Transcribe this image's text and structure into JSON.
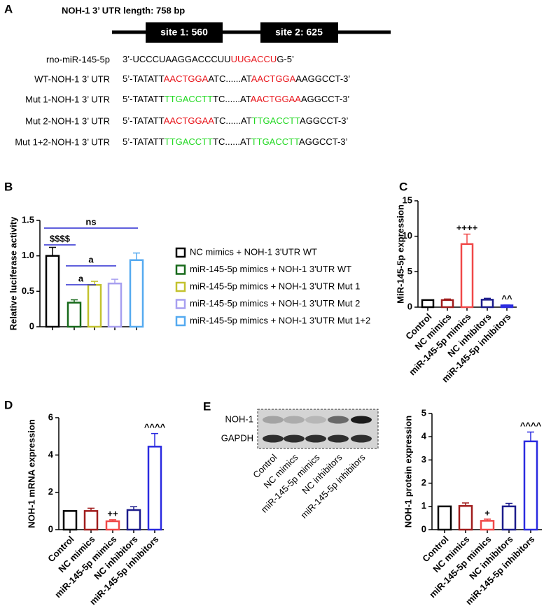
{
  "panel_a": {
    "label": "A",
    "title": "NOH-1  3’ UTR length: 758 bp",
    "sites": [
      "site 1: 560",
      "site 2: 625"
    ],
    "sequences": [
      {
        "label": "rno-miR-145-5p",
        "segments": [
          {
            "text": "3’-UCCCUAAGGACCCUU"
          },
          {
            "text": "UUGACCU",
            "color": "#e8151b"
          },
          {
            "text": "G-5’"
          }
        ]
      },
      {
        "label": "WT-NOH-1 3’ UTR",
        "segments": [
          {
            "text": "5’-TATATT"
          },
          {
            "text": "AACTGGA",
            "color": "#e8151b"
          },
          {
            "text": "ATC......AT"
          },
          {
            "text": "AACTGGA",
            "color": "#e8151b"
          },
          {
            "text": "AAGGCCT-3’"
          }
        ]
      },
      {
        "label": "Mut 1-NOH-1 3’ UTR",
        "segments": [
          {
            "text": "5’-TATATT"
          },
          {
            "text": "TTGACCTT",
            "color": "#22d822"
          },
          {
            "text": "TC......AT"
          },
          {
            "text": "AACTGGAA",
            "color": "#e8151b"
          },
          {
            "text": "AGGCCT-3’"
          }
        ]
      },
      {
        "label": "Mut 2-NOH-1 3’ UTR",
        "segments": [
          {
            "text": "5’-TATATT"
          },
          {
            "text": "AACTGGAA",
            "color": "#e8151b"
          },
          {
            "text": "TC......AT"
          },
          {
            "text": "TTGACCTT",
            "color": "#22d822"
          },
          {
            "text": "AGGCCT-3’"
          }
        ]
      },
      {
        "label": "Mut 1+2-NOH-1 3’ UTR",
        "segments": [
          {
            "text": "5’-TATATT"
          },
          {
            "text": "TTGACCTT",
            "color": "#22d822"
          },
          {
            "text": "TC......AT"
          },
          {
            "text": "TTGACCTT",
            "color": "#22d822"
          },
          {
            "text": "AGGCCT-3’"
          }
        ]
      }
    ]
  },
  "blot": {
    "label": "E",
    "bands": [
      "NOH-1",
      "GAPDH"
    ],
    "lanes": [
      "Control",
      "NC mimics",
      "miR-145-5p mimics",
      "NC inhibitors",
      "miR-145-5p inhibitors"
    ]
  },
  "chart_data": [
    {
      "type": "bar",
      "label": "B",
      "y_label": "Relative luciferase activity",
      "legend": true,
      "categories": [
        "NC mimics + NOH-1 3'UTR WT",
        "miR-145-5p mimics + NOH-1 3'UTR WT",
        "miR-145-5p mimics + NOH-1 3'UTR Mut 1",
        "miR-145-5p mimics + NOH-1 3'UTR Mut 2",
        "miR-145-5p mimics + NOH-1 3'UTR Mut 1+2"
      ],
      "values": [
        1.0,
        0.34,
        0.59,
        0.61,
        0.94
      ],
      "errors": [
        0.12,
        0.04,
        0.05,
        0.06,
        0.1
      ],
      "colors": [
        "#000000",
        "#17691a",
        "#c3c22e",
        "#a79ff0",
        "#55aaf0"
      ],
      "ylim": [
        0,
        1.5
      ],
      "yticks": [
        0,
        0.5,
        {
          "value": 1,
          "label": "1.0"
        },
        1.5
      ],
      "brackets": [
        {
          "text": "ns",
          "from": 0,
          "to": 4,
          "color": "#2a2ad0"
        },
        {
          "text": "$$$$",
          "from": 0,
          "to": 1,
          "color": "#2a2ad0"
        },
        {
          "text": "a",
          "from": 1,
          "to": 3,
          "color": "#2a2ad0"
        },
        {
          "text": "a",
          "from": 1,
          "to": 2,
          "color": "#2a2ad0"
        }
      ]
    },
    {
      "type": "bar",
      "label": "C",
      "y_label": "MiR-145-5p expression",
      "categories": [
        "Control",
        "NC mimics",
        "miR-145-5p mimics",
        "NC inhibitors",
        "miR-145-5p inhibitors"
      ],
      "values": [
        1.0,
        1.0,
        8.9,
        1.05,
        0.25
      ],
      "errors": [
        0,
        0.15,
        1.4,
        0.2,
        0.05
      ],
      "colors": [
        "#000000",
        "#a01c1c",
        "#f04848",
        "#1c1c8c",
        "#2a2ae0"
      ],
      "annotations": [
        null,
        null,
        "++++",
        null,
        "^^"
      ],
      "ylim": [
        0,
        15
      ],
      "yticks": [
        0,
        5,
        10,
        15
      ]
    },
    {
      "type": "bar",
      "y_label": "NOH-1 mRNA expression",
      "label": "D",
      "categories": [
        "Control",
        "NC mimics",
        "miR-145-5p mimics",
        "NC inhibitors",
        "miR-145-5p inhibitors"
      ],
      "values": [
        1.0,
        1.0,
        0.45,
        1.05,
        4.45
      ],
      "errors": [
        0,
        0.15,
        0.08,
        0.18,
        0.7
      ],
      "colors": [
        "#000000",
        "#a01c1c",
        "#f04848",
        "#1c1c8c",
        "#2a2ae0"
      ],
      "annotations": [
        null,
        null,
        "++",
        null,
        "^^^^"
      ],
      "ylim": [
        0,
        6
      ],
      "yticks": [
        0,
        2,
        4,
        6
      ]
    },
    {
      "type": "bar",
      "y_label": "NOH-1 protein expression",
      "categories": [
        "Control",
        "NC mimics",
        "miR-145-5p mimics",
        "NC inhibitors",
        "miR-145-5p inhibitors"
      ],
      "values": [
        1.0,
        1.02,
        0.38,
        1.0,
        3.8
      ],
      "errors": [
        0,
        0.13,
        0.07,
        0.13,
        0.4
      ],
      "colors": [
        "#000000",
        "#a01c1c",
        "#f04848",
        "#1c1c8c",
        "#2a2ae0"
      ],
      "annotations": [
        null,
        null,
        "+",
        null,
        "^^^^"
      ],
      "ylim": [
        0,
        5
      ],
      "yticks": [
        0,
        1,
        2,
        3,
        4,
        5
      ]
    }
  ]
}
